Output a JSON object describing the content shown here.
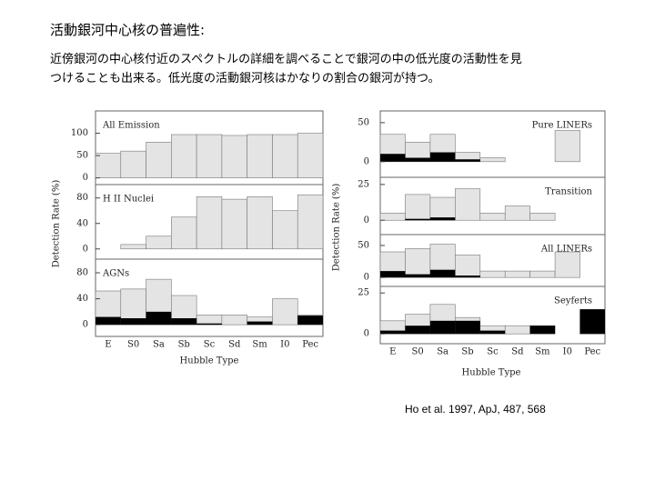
{
  "title": "活動銀河中心核の普遍性:",
  "body_lines": [
    "近傍銀河の中心核付近のスペクトルの詳細を調べることで銀河の中の低光度の活動性を見",
    "つけることも出来る。低光度の活動銀河核はかなりの割合の銀河が持つ。"
  ],
  "citation": "Ho et al. 1997, ApJ, 487, 568",
  "chart_data": [
    {
      "type": "bar",
      "xlabel": "Hubble Type",
      "ylabel": "Detection Rate (%)",
      "categories": [
        "E",
        "S0",
        "Sa",
        "Sb",
        "Sc",
        "Sd",
        "Sm",
        "I0",
        "Pec"
      ],
      "panels": [
        {
          "label": "All Emission",
          "ylim": [
            -15,
            150
          ],
          "yticks": [
            0,
            50,
            100
          ],
          "series": [
            {
              "color": "#e4e4e4",
              "values": [
                55,
                60,
                80,
                97,
                97,
                95,
                97,
                97,
                100
              ]
            },
            {
              "color": "#000000",
              "values": [
                0,
                0,
                0,
                0,
                0,
                0,
                0,
                0,
                0
              ]
            }
          ]
        },
        {
          "label": "H II Nuclei",
          "ylim": [
            -16,
            101
          ],
          "yticks": [
            0,
            40,
            80
          ],
          "series": [
            {
              "color": "#e4e4e4",
              "values": [
                0,
                7,
                20,
                50,
                82,
                78,
                82,
                60,
                85
              ]
            },
            {
              "color": "#000000",
              "values": [
                0,
                0,
                0,
                0,
                0,
                0,
                0,
                0,
                0
              ]
            }
          ]
        },
        {
          "label": "AGNs",
          "ylim": [
            -18,
            101
          ],
          "yticks": [
            0,
            40,
            80
          ],
          "series": [
            {
              "color": "#e4e4e4",
              "values": [
                52,
                55,
                70,
                45,
                15,
                15,
                12,
                40,
                15
              ]
            },
            {
              "color": "#000000",
              "values": [
                12,
                10,
                20,
                10,
                2,
                0,
                5,
                0,
                14
              ]
            }
          ]
        }
      ]
    },
    {
      "type": "bar",
      "xlabel": "Hubble Type",
      "ylabel": "Detection Rate (%)",
      "categories": [
        "E",
        "S0",
        "Sa",
        "Sb",
        "Sc",
        "Sd",
        "Sm",
        "I0",
        "Pec"
      ],
      "panels": [
        {
          "label": "Pure LINERs",
          "ylim": [
            -20,
            65
          ],
          "yticks": [
            0,
            50
          ],
          "series": [
            {
              "color": "#e4e4e4",
              "values": [
                35,
                25,
                35,
                12,
                5,
                0,
                0,
                40,
                0
              ]
            },
            {
              "color": "#000000",
              "values": [
                10,
                5,
                12,
                3,
                0,
                0,
                0,
                0,
                0
              ]
            }
          ]
        },
        {
          "label": "Transition",
          "ylim": [
            -10,
            30
          ],
          "yticks": [
            0,
            25
          ],
          "series": [
            {
              "color": "#e4e4e4",
              "values": [
                5,
                18,
                16,
                22,
                5,
                10,
                5,
                0,
                0
              ]
            },
            {
              "color": "#000000",
              "values": [
                0,
                1,
                2,
                0,
                0,
                0,
                0,
                0,
                0
              ]
            }
          ]
        },
        {
          "label": "All LINERs",
          "ylim": [
            -14,
            67
          ],
          "yticks": [
            0,
            50
          ],
          "series": [
            {
              "color": "#e4e4e4",
              "values": [
                40,
                45,
                52,
                35,
                10,
                10,
                10,
                40,
                0
              ]
            },
            {
              "color": "#000000",
              "values": [
                10,
                5,
                12,
                3,
                0,
                0,
                0,
                0,
                0
              ]
            }
          ]
        },
        {
          "label": "Seyferts",
          "ylim": [
            -6,
            29
          ],
          "yticks": [
            0,
            25
          ],
          "series": [
            {
              "color": "#e4e4e4",
              "values": [
                8,
                12,
                18,
                10,
                5,
                5,
                5,
                0,
                15
              ]
            },
            {
              "color": "#000000",
              "values": [
                2,
                5,
                8,
                8,
                2,
                0,
                5,
                0,
                15
              ]
            }
          ]
        }
      ]
    }
  ]
}
